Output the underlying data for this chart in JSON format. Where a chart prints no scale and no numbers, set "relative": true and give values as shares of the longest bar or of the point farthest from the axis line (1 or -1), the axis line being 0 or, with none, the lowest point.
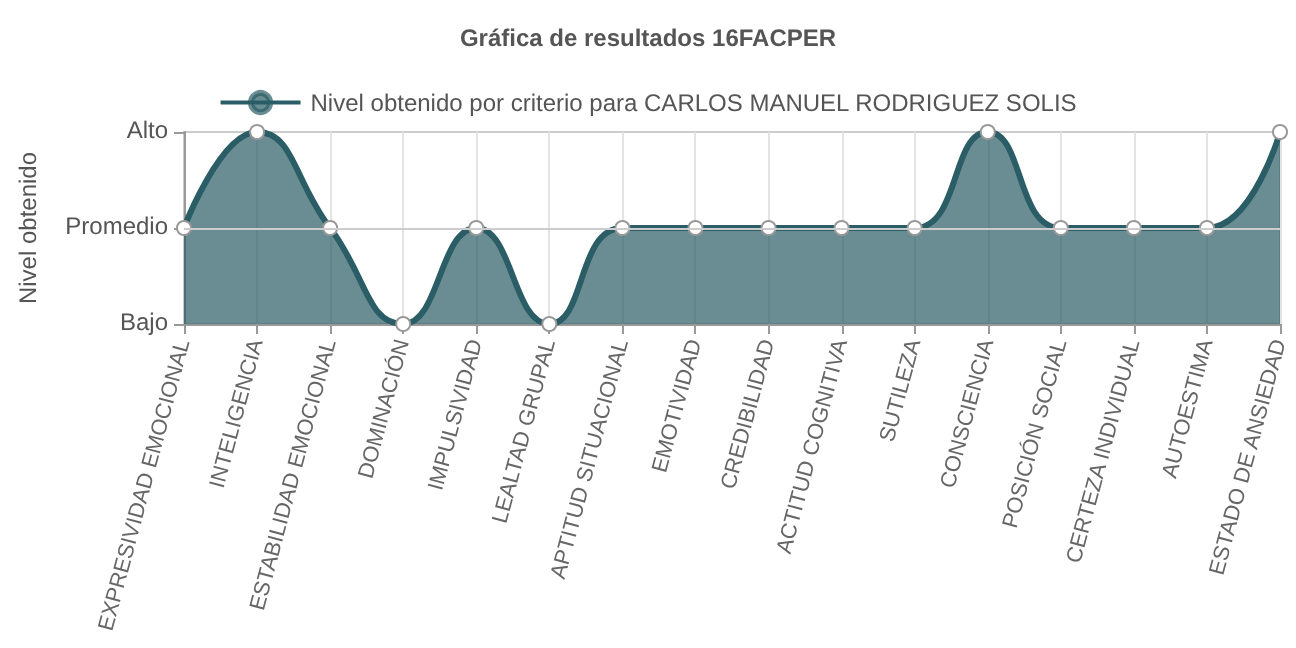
{
  "chart_data": {
    "type": "area",
    "title": "Gráfica de resultados 16FACPER",
    "ylabel": "Nivel obtenido",
    "categories": [
      "EXPRESIVIDAD EMOCIONAL",
      "INTELIGENCIA",
      "ESTABILIDAD EMOCIONAL",
      "DOMINACIÓN",
      "IMPULSIVIDAD",
      "LEALTAD GRUPAL",
      "APTITUD SITUACIONAL",
      "EMOTIVIDAD",
      "CREDIBILIDAD",
      "ACTITUD COGNITIVA",
      "SUTILEZA",
      "CONSCIENCIA",
      "POSICIÓN SOCIAL",
      "CERTEZA INDIVIDUAL",
      "AUTOESTIMA",
      "ESTADO DE ANSIEDAD"
    ],
    "series": [
      {
        "name": "Nivel obtenido por criterio para CARLOS MANUEL RODRIGUEZ SOLIS",
        "color": "#2b5d66",
        "values": [
          0.5,
          1,
          0.5,
          0,
          0.5,
          0,
          0.5,
          0.5,
          0.5,
          0.5,
          0.5,
          1,
          0.5,
          0.5,
          0.5,
          1
        ]
      }
    ],
    "relative": true,
    "annotations": [
      "Alto",
      "Promedio",
      "Bajo"
    ],
    "ref_lines": [
      {
        "axis": "y",
        "value": 0.5,
        "color": "#cccccc",
        "line_style": "solid"
      }
    ],
    "grid": "x",
    "legend": "top",
    "marker": "circle",
    "line_style": "solid"
  }
}
